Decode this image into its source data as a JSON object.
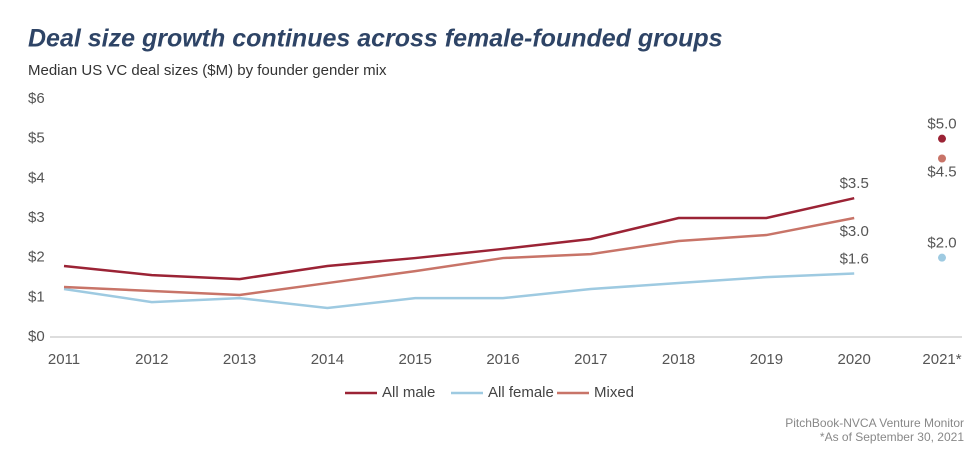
{
  "chart_data": {
    "type": "line",
    "title": "Deal size growth continues across female-founded groups",
    "subtitle": "Median US VC deal sizes ($M) by founder gender mix",
    "categories": [
      "2011",
      "2012",
      "2013",
      "2014",
      "2015",
      "2016",
      "2017",
      "2018",
      "2019",
      "2020",
      "2021*"
    ],
    "connect_last": false,
    "series": [
      {
        "name": "All male",
        "color": "#9b2335",
        "label_position": "above",
        "values": [
          1.79,
          1.56,
          1.46,
          1.79,
          1.99,
          2.22,
          2.47,
          3.0,
          3.0,
          3.5,
          5.0
        ],
        "value_labels": [
          null,
          null,
          null,
          null,
          null,
          null,
          null,
          null,
          null,
          "$3.5",
          "$5.0"
        ]
      },
      {
        "name": "All female",
        "color": "#9ecae1",
        "label_position": "above",
        "values": [
          1.21,
          0.88,
          0.98,
          0.73,
          0.98,
          0.98,
          1.21,
          1.36,
          1.51,
          1.6,
          2.0
        ],
        "value_labels": [
          null,
          null,
          null,
          null,
          null,
          null,
          null,
          null,
          null,
          "$1.6",
          "$2.0"
        ]
      },
      {
        "name": "Mixed",
        "color": "#c87468",
        "label_position": "below",
        "values": [
          1.26,
          1.16,
          1.06,
          1.36,
          1.66,
          1.99,
          2.09,
          2.42,
          2.57,
          3.0,
          4.5
        ],
        "value_labels": [
          null,
          null,
          null,
          null,
          null,
          null,
          null,
          null,
          null,
          "$3.0",
          "$4.5"
        ]
      }
    ],
    "ylim": [
      0,
      6
    ],
    "yticks": [
      {
        "value": 0,
        "label": "$0"
      },
      {
        "value": 1,
        "label": "$1"
      },
      {
        "value": 2,
        "label": "$2"
      },
      {
        "value": 3,
        "label": "$3"
      },
      {
        "value": 4,
        "label": "$4"
      },
      {
        "value": 5,
        "label": "$5"
      },
      {
        "value": 6,
        "label": "$6"
      }
    ],
    "source": "PitchBook-NVCA Venture Monitor",
    "note": "*As of September 30, 2021"
  }
}
